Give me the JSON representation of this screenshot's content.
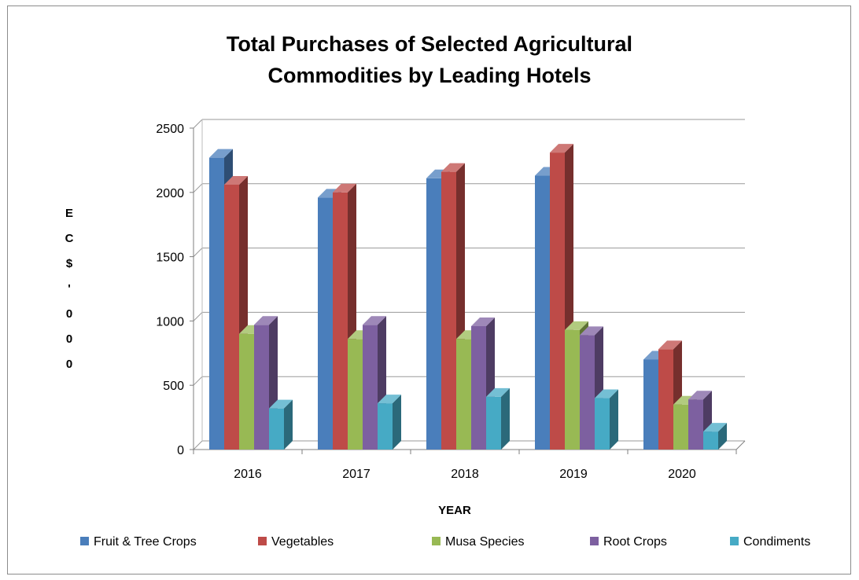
{
  "chart_data": {
    "type": "bar",
    "title_lines": [
      "Total Purchases of Selected Agricultural",
      "Commodities by Leading Hotels"
    ],
    "xlabel": "YEAR",
    "ylabel_chars": [
      "E",
      "C",
      "$",
      "'",
      "0",
      "0",
      "0"
    ],
    "categories": [
      "2016",
      "2017",
      "2018",
      "2019",
      "2020"
    ],
    "yticks": [
      "0",
      "500",
      "1000",
      "1500",
      "2000",
      "2500"
    ],
    "ylim": [
      0,
      2500
    ],
    "grid": true,
    "legend_position": "bottom",
    "series": [
      {
        "name": "Fruit & Tree Crops",
        "color": "#4a7ebb",
        "values": [
          2270,
          1960,
          2110,
          2130,
          700
        ]
      },
      {
        "name": "Vegetables",
        "color": "#be4b48",
        "values": [
          2060,
          2000,
          2160,
          2310,
          780
        ]
      },
      {
        "name": "Musa Species",
        "color": "#98b954",
        "values": [
          900,
          860,
          860,
          930,
          350
        ]
      },
      {
        "name": "Root Crops",
        "color": "#7d60a0",
        "values": [
          970,
          970,
          960,
          890,
          390
        ]
      },
      {
        "name": "Condiments",
        "color": "#46aac5",
        "values": [
          320,
          360,
          410,
          400,
          140
        ]
      }
    ]
  }
}
